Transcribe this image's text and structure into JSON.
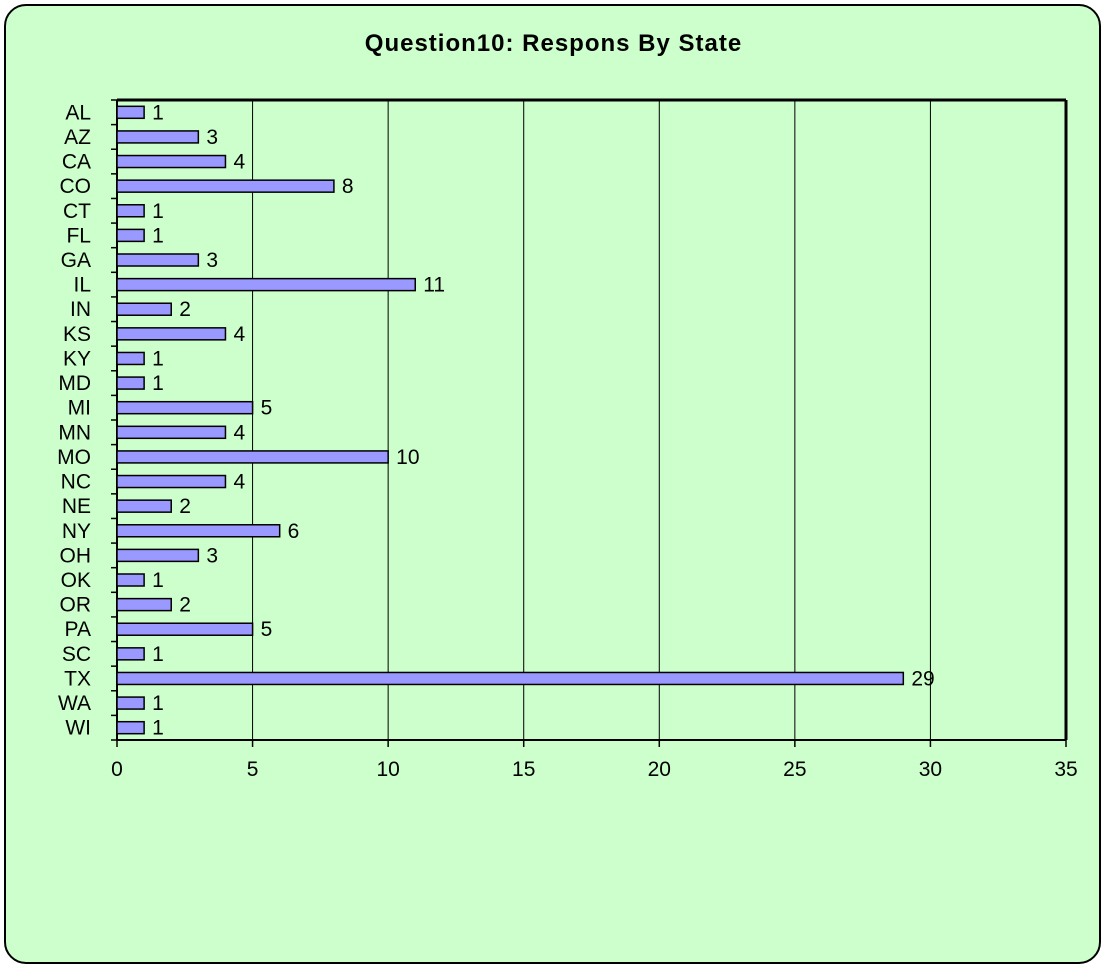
{
  "chart_data": {
    "type": "bar",
    "orientation": "horizontal",
    "title": "Question10: Respons By State",
    "xlabel": "",
    "ylabel": "",
    "categories": [
      "AL",
      "AZ",
      "CA",
      "CO",
      "CT",
      "FL",
      "GA",
      "IL",
      "IN",
      "KS",
      "KY",
      "MD",
      "MI",
      "MN",
      "MO",
      "NC",
      "NE",
      "NY",
      "OH",
      "OK",
      "OR",
      "PA",
      "SC",
      "TX",
      "WA",
      "WI"
    ],
    "values": [
      1,
      3,
      4,
      8,
      1,
      1,
      3,
      11,
      2,
      4,
      1,
      1,
      5,
      4,
      10,
      4,
      2,
      6,
      3,
      1,
      2,
      5,
      1,
      29,
      1,
      1
    ],
    "xlim": [
      0,
      35
    ],
    "xticks": [
      0,
      5,
      10,
      15,
      20,
      25,
      30,
      35
    ],
    "grid": true,
    "legend": "none",
    "data_labels": true,
    "colors": {
      "background": "#ccffcc",
      "bar_fill": "#9999ff",
      "bar_stroke": "#000000",
      "grid": "#000000"
    }
  }
}
